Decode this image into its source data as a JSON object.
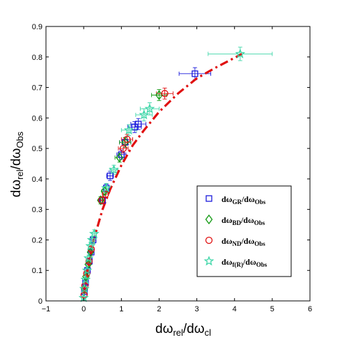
{
  "chart_data": {
    "type": "scatter",
    "xlabel": {
      "main": "dω",
      "sub1": "rel",
      "mid": "/dω",
      "sub2": "cl"
    },
    "ylabel": {
      "main": "dω",
      "sub1": "rel",
      "mid": "/dω",
      "sub2": "Obs"
    },
    "xlim": [
      -1,
      6
    ],
    "ylim": [
      0,
      0.9
    ],
    "xticks": [
      "−1",
      "0",
      "1",
      "2",
      "3",
      "4",
      "5",
      "6"
    ],
    "yticks": [
      "0",
      "0.1",
      "0.2",
      "0.3",
      "0.4",
      "0.5",
      "0.6",
      "0.7",
      "0.8",
      "0.9"
    ],
    "grid": false,
    "legend_position": "lower-right",
    "series": [
      {
        "name": "dω_GR/dω_Obs",
        "legend": {
          "main": "dω",
          "sub1": "GR",
          "mid": "/dω",
          "sub2": "Obs"
        },
        "marker": "square",
        "color": "#1a1adb",
        "x": [
          0.02,
          0.05,
          0.1,
          0.15,
          0.2,
          0.25,
          0.5,
          0.6,
          0.7,
          1.0,
          1.1,
          1.35,
          1.45,
          2.95
        ],
        "y": [
          0.03,
          0.06,
          0.1,
          0.13,
          0.16,
          0.2,
          0.33,
          0.37,
          0.41,
          0.48,
          0.52,
          0.57,
          0.58,
          0.745
        ],
        "xerr": [
          0.01,
          0.02,
          0.02,
          0.03,
          0.03,
          0.04,
          0.06,
          0.07,
          0.09,
          0.12,
          0.15,
          0.18,
          0.2,
          0.42
        ],
        "yerr": [
          0.005,
          0.006,
          0.008,
          0.01,
          0.01,
          0.012,
          0.012,
          0.013,
          0.015,
          0.015,
          0.016,
          0.018,
          0.018,
          0.02
        ]
      },
      {
        "name": "dω_BD/dω_Obs",
        "legend": {
          "main": "dω",
          "sub1": "BD",
          "mid": "/dω",
          "sub2": "Obs"
        },
        "marker": "diamond",
        "color": "#119911",
        "x": [
          0.02,
          0.06,
          0.12,
          0.18,
          0.45,
          0.55,
          0.95,
          1.1,
          2.0
        ],
        "y": [
          0.04,
          0.08,
          0.12,
          0.16,
          0.33,
          0.36,
          0.47,
          0.52,
          0.675
        ],
        "xerr": [
          0.01,
          0.02,
          0.03,
          0.03,
          0.06,
          0.07,
          0.12,
          0.15,
          0.2
        ],
        "yerr": [
          0.005,
          0.007,
          0.008,
          0.01,
          0.012,
          0.013,
          0.015,
          0.016,
          0.018
        ]
      },
      {
        "name": "dω_ND/dω_Obs",
        "legend": {
          "main": "dω",
          "sub1": "ND",
          "mid": "/dω",
          "sub2": "Obs"
        },
        "marker": "circle",
        "color": "#e01010",
        "x": [
          0.01,
          0.03,
          0.08,
          0.14,
          0.2,
          0.48,
          0.58,
          1.05,
          1.15,
          2.15
        ],
        "y": [
          0.02,
          0.05,
          0.09,
          0.13,
          0.17,
          0.33,
          0.35,
          0.5,
          0.53,
          0.68
        ],
        "xerr": [
          0.01,
          0.02,
          0.02,
          0.03,
          0.03,
          0.06,
          0.07,
          0.13,
          0.15,
          0.22
        ],
        "yerr": [
          0.005,
          0.006,
          0.008,
          0.01,
          0.01,
          0.012,
          0.013,
          0.015,
          0.016,
          0.018
        ]
      },
      {
        "name": "dω_f(R)/dω_Obs",
        "legend": {
          "main": "dω",
          "sub1": "f(R)",
          "mid": "/dω",
          "sub2": "Obs"
        },
        "marker": "star",
        "color": "#3ed6a8",
        "x": [
          0.0,
          0.02,
          0.05,
          0.09,
          0.13,
          0.18,
          0.22,
          0.28,
          0.6,
          0.8,
          1.2,
          1.6,
          1.75,
          4.15
        ],
        "y": [
          0.01,
          0.04,
          0.07,
          0.1,
          0.14,
          0.18,
          0.2,
          0.22,
          0.37,
          0.43,
          0.56,
          0.61,
          0.63,
          0.81
        ],
        "xerr": [
          0.01,
          0.02,
          0.02,
          0.03,
          0.03,
          0.04,
          0.05,
          0.05,
          0.08,
          0.1,
          0.2,
          0.22,
          0.25,
          0.85
        ],
        "yerr": [
          0.005,
          0.006,
          0.008,
          0.01,
          0.01,
          0.012,
          0.012,
          0.013,
          0.015,
          0.015,
          0.018,
          0.02,
          0.02,
          0.022
        ]
      }
    ],
    "fit_curve": {
      "color": "#e01010",
      "style": "dash-dot",
      "x": [
        0.0,
        0.05,
        0.1,
        0.2,
        0.3,
        0.5,
        0.7,
        1.0,
        1.3,
        1.6,
        2.0,
        2.5,
        3.0,
        3.5,
        4.2
      ],
      "y": [
        0.02,
        0.055,
        0.09,
        0.16,
        0.215,
        0.3,
        0.365,
        0.445,
        0.51,
        0.56,
        0.62,
        0.68,
        0.73,
        0.765,
        0.81
      ]
    }
  }
}
